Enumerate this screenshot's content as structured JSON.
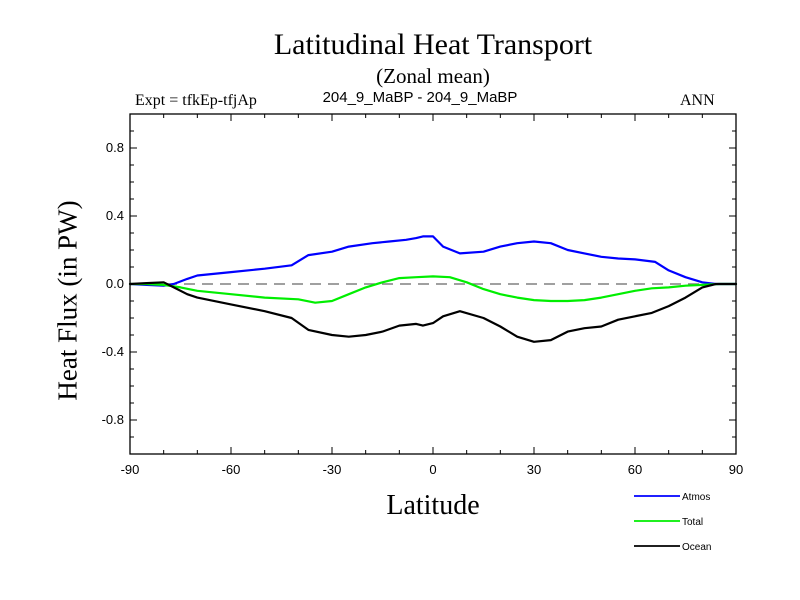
{
  "chart_data": {
    "type": "line",
    "title": "Latitudinal Heat Transport",
    "subtitle": "(Zonal mean)",
    "left_string": "Expt = tfkEp-tfjAp",
    "center_string": "204_9_MaBP - 204_9_MaBP",
    "right_string": "ANN",
    "xlabel": "Latitude",
    "ylabel": "Heat Flux (in PW)",
    "xlim": [
      -90,
      90
    ],
    "ylim": [
      -1.0,
      1.0
    ],
    "xticks": [
      -90,
      -60,
      -30,
      0,
      30,
      60,
      90
    ],
    "xtick_labels": [
      "-90",
      "-60",
      "-30",
      "0",
      "30",
      "60",
      "90"
    ],
    "yticks": [
      -0.8,
      -0.4,
      0.0,
      0.4,
      0.8
    ],
    "ytick_labels": [
      "-0.8",
      "-0.4",
      "0.0",
      "0.4",
      "0.8"
    ],
    "zero_line": true,
    "grid": false,
    "legend_position": "bottom-right",
    "series": [
      {
        "name": "Atmos",
        "color": "#0000ff",
        "x": [
          -90,
          -85,
          -80,
          -77,
          -73,
          -70,
          -60,
          -50,
          -42,
          -37,
          -30,
          -25,
          -18,
          -13,
          -8,
          -5,
          -3,
          0,
          3,
          8,
          15,
          20,
          25,
          30,
          35,
          40,
          45,
          50,
          55,
          60,
          66,
          70,
          75,
          80,
          84,
          90
        ],
        "y": [
          0.0,
          -0.005,
          -0.01,
          0.0,
          0.03,
          0.05,
          0.07,
          0.09,
          0.11,
          0.17,
          0.19,
          0.22,
          0.24,
          0.25,
          0.26,
          0.27,
          0.28,
          0.28,
          0.22,
          0.18,
          0.19,
          0.22,
          0.24,
          0.25,
          0.24,
          0.2,
          0.18,
          0.16,
          0.15,
          0.145,
          0.13,
          0.08,
          0.04,
          0.01,
          0.0,
          0.0
        ]
      },
      {
        "name": "Total",
        "color": "#00ee00",
        "x": [
          -90,
          -85,
          -80,
          -75,
          -70,
          -60,
          -50,
          -40,
          -35,
          -30,
          -25,
          -20,
          -15,
          -10,
          -5,
          0,
          5,
          10,
          15,
          20,
          25,
          30,
          35,
          40,
          45,
          50,
          55,
          60,
          65,
          70,
          75,
          80,
          85,
          90
        ],
        "y": [
          0.0,
          0.0,
          -0.005,
          -0.02,
          -0.04,
          -0.06,
          -0.08,
          -0.09,
          -0.11,
          -0.1,
          -0.06,
          -0.02,
          0.01,
          0.035,
          0.04,
          0.045,
          0.04,
          0.01,
          -0.03,
          -0.06,
          -0.08,
          -0.095,
          -0.1,
          -0.1,
          -0.095,
          -0.08,
          -0.06,
          -0.04,
          -0.025,
          -0.02,
          -0.01,
          -0.005,
          0.0,
          0.0
        ]
      },
      {
        "name": "Ocean",
        "color": "#000000",
        "x": [
          -90,
          -85,
          -80,
          -77,
          -73,
          -70,
          -60,
          -50,
          -42,
          -37,
          -30,
          -25,
          -20,
          -15,
          -10,
          -5,
          -3,
          0,
          3,
          8,
          15,
          20,
          25,
          30,
          35,
          40,
          45,
          50,
          55,
          60,
          65,
          70,
          75,
          80,
          84,
          90
        ],
        "y": [
          0.0,
          0.005,
          0.01,
          -0.02,
          -0.06,
          -0.08,
          -0.12,
          -0.16,
          -0.2,
          -0.27,
          -0.3,
          -0.31,
          -0.3,
          -0.28,
          -0.245,
          -0.235,
          -0.245,
          -0.23,
          -0.19,
          -0.16,
          -0.2,
          -0.25,
          -0.31,
          -0.34,
          -0.33,
          -0.28,
          -0.26,
          -0.25,
          -0.21,
          -0.19,
          -0.17,
          -0.13,
          -0.08,
          -0.02,
          0.0,
          0.0
        ]
      }
    ]
  }
}
